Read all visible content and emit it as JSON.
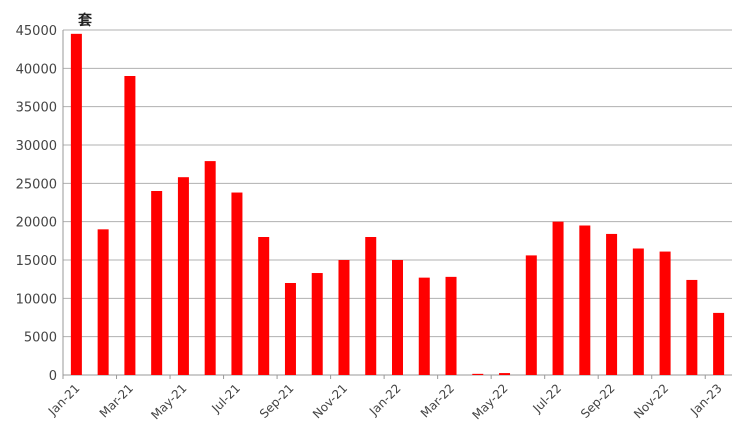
{
  "chart_data": {
    "type": "bar",
    "unit_label": "套",
    "categories": [
      "Jan-21",
      "Feb-21",
      "Mar-21",
      "Apr-21",
      "May-21",
      "Jun-21",
      "Jul-21",
      "Aug-21",
      "Sep-21",
      "Oct-21",
      "Nov-21",
      "Dec-21",
      "Jan-22",
      "Feb-22",
      "Mar-22",
      "Apr-22",
      "May-22",
      "Jun-22",
      "Jul-22",
      "Aug-22",
      "Sep-22",
      "Oct-22",
      "Nov-22",
      "Dec-22",
      "Jan-23"
    ],
    "tick_labels": [
      "Jan-21",
      "Mar-21",
      "May-21",
      "Jul-21",
      "Sep-21",
      "Nov-21",
      "Jan-22",
      "Mar-22",
      "May-22",
      "Jul-22",
      "Sep-22",
      "Nov-22",
      "Jan-23"
    ],
    "values": [
      44500,
      19000,
      39000,
      24000,
      25800,
      27900,
      23800,
      18000,
      12000,
      13300,
      15000,
      18000,
      15000,
      12700,
      12800,
      150,
      250,
      15600,
      20000,
      19500,
      18400,
      16500,
      16100,
      12400,
      8100
    ],
    "ylim": [
      0,
      45000
    ],
    "yticks": [
      0,
      5000,
      10000,
      15000,
      20000,
      25000,
      30000,
      35000,
      40000,
      45000
    ],
    "grid": true,
    "bar_color": "#ff0000",
    "grid_color": "#b0b0b0"
  }
}
